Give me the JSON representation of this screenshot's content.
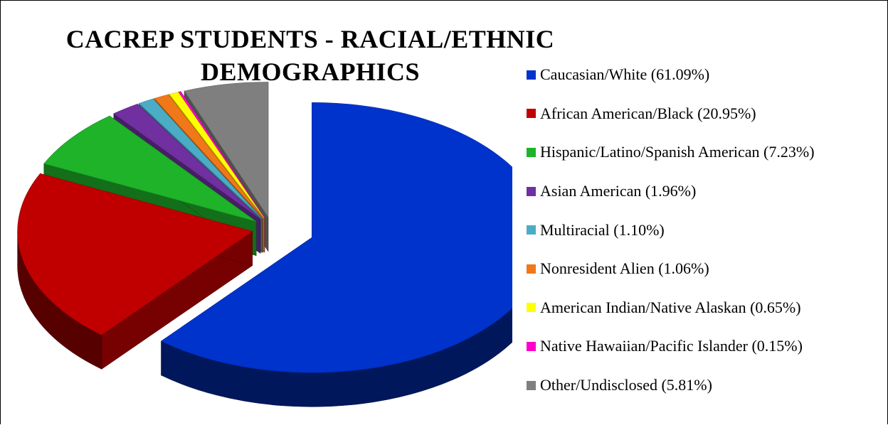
{
  "chart_data": {
    "type": "pie",
    "title": "CACREP STUDENTS - RACIAL/ETHNIC DEMOGRAPHICS",
    "legend_position": "right",
    "slices": [
      {
        "label": "Caucasian/White (61.09%)",
        "value": 61.09,
        "color": "#0033CC",
        "exploded": true
      },
      {
        "label": "African American/Black (20.95%)",
        "value": 20.95,
        "color": "#C00000",
        "exploded": true
      },
      {
        "label": "Hispanic/Latino/Spanish American (7.23%)",
        "value": 7.23,
        "color": "#1EB329",
        "exploded": true
      },
      {
        "label": "Asian American (1.96%)",
        "value": 1.96,
        "color": "#7030A0",
        "exploded": true
      },
      {
        "label": "Multiracial (1.10%)",
        "value": 1.1,
        "color": "#4BACC6",
        "exploded": true
      },
      {
        "label": "Nonresident Alien (1.06%)",
        "value": 1.06,
        "color": "#F07818",
        "exploded": true
      },
      {
        "label": "American Indian/Native Alaskan (0.65%)",
        "value": 0.65,
        "color": "#FFFF00",
        "exploded": true
      },
      {
        "label": "Native Hawaiian/Pacific Islander (0.15%)",
        "value": 0.15,
        "color": "#FF00CC",
        "exploded": true
      },
      {
        "label": "Other/Undisclosed (5.81%)",
        "value": 5.81,
        "color": "#7F7F7F",
        "exploded": true
      }
    ]
  }
}
